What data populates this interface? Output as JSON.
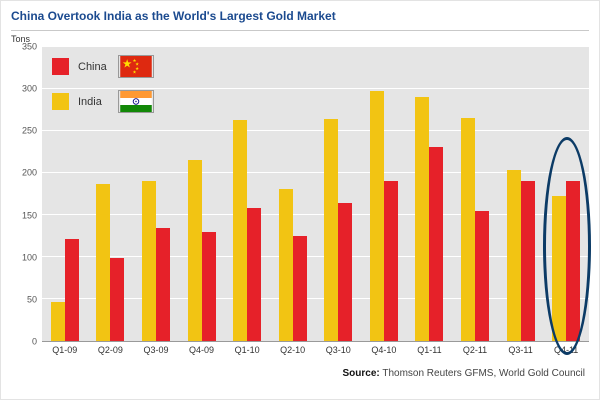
{
  "title": "China Overtook India as the World's Largest Gold Market",
  "y_axis_unit": "Tons",
  "legend": {
    "items": [
      {
        "label": "China",
        "color": "#e62129",
        "flag": "china-flag"
      },
      {
        "label": "India",
        "color": "#f2c413",
        "flag": "india-flag"
      }
    ]
  },
  "source": {
    "label": "Source:",
    "text": " Thomson Reuters GFMS, World Gold Council"
  },
  "annotation": {
    "shape": "ellipse",
    "target": "Q4-11",
    "color": "#0c3b66"
  },
  "chart_data": {
    "type": "bar",
    "categories": [
      "Q1-09",
      "Q2-09",
      "Q3-09",
      "Q4-09",
      "Q1-10",
      "Q2-10",
      "Q3-10",
      "Q4-10",
      "Q1-11",
      "Q2-11",
      "Q3-11",
      "Q4-11"
    ],
    "series": [
      {
        "name": "India",
        "color": "#f2c413",
        "values": [
          47,
          187,
          191,
          216,
          263,
          181,
          264,
          298,
          290,
          266,
          203,
          173
        ]
      },
      {
        "name": "China",
        "color": "#e62129",
        "values": [
          122,
          99,
          134,
          130,
          158,
          125,
          164,
          190,
          231,
          155,
          190,
          190
        ]
      }
    ],
    "title": "China Overtook India as the World's Largest Gold Market",
    "xlabel": "",
    "ylabel": "Tons",
    "ylim": [
      0,
      350
    ],
    "ytick_step": 50,
    "grid": true,
    "legend_position": "top-left",
    "legend_order": [
      "China",
      "India"
    ],
    "annotation": "dark blue ellipse circling Q4-11 group where China (190) exceeds India (173)"
  }
}
